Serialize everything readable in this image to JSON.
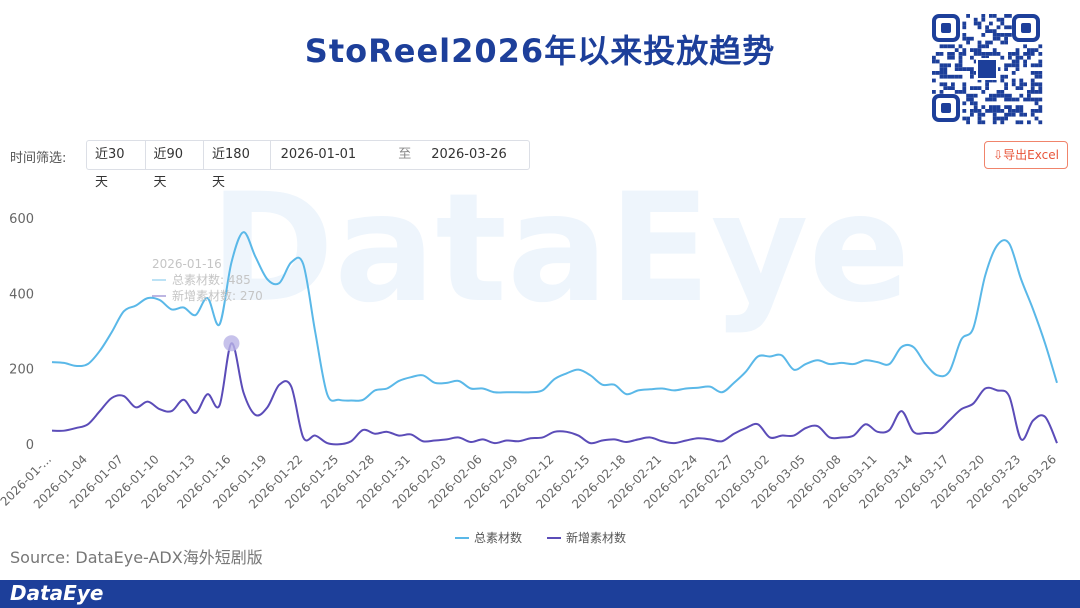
{
  "header": {
    "title": "StoReel2026年以来投放趋势"
  },
  "filter": {
    "label": "时间筛选:",
    "presets": [
      "近30天",
      "近90天",
      "近180天"
    ],
    "start": "2026-01-01",
    "separator": "至",
    "end": "2026-03-26",
    "export": "导出Excel"
  },
  "watermark": "DataEye",
  "source": "Source:  DataEye-ADX海外短剧版",
  "footer": {
    "brand": "DataEye"
  },
  "chart_data": {
    "type": "line",
    "categories": [
      "2026-01-...",
      null,
      null,
      "2026-01-04",
      null,
      null,
      "2026-01-07",
      null,
      null,
      "2026-01-10",
      null,
      null,
      "2026-01-13",
      null,
      null,
      "2026-01-16",
      null,
      null,
      "2026-01-19",
      null,
      null,
      "2026-01-22",
      null,
      null,
      "2026-01-25",
      null,
      null,
      "2026-01-28",
      null,
      null,
      "2026-01-31",
      null,
      null,
      "2026-02-03",
      null,
      null,
      "2026-02-06",
      null,
      null,
      "2026-02-09",
      null,
      null,
      "2026-02-12",
      null,
      null,
      "2026-02-15",
      null,
      null,
      "2026-02-18",
      null,
      null,
      "2026-02-21",
      null,
      null,
      "2026-02-24",
      null,
      null,
      "2026-02-27",
      null,
      null,
      "2026-03-02",
      null,
      null,
      "2026-03-05",
      null,
      null,
      "2026-03-08",
      null,
      null,
      "2026-03-11",
      null,
      null,
      "2026-03-14",
      null,
      null,
      "2026-03-17",
      null,
      null,
      "2026-03-20",
      null,
      null,
      "2026-03-23",
      null,
      null,
      "2026-03-26"
    ],
    "series": [
      {
        "name": "总素材数",
        "color": "#5ab8e8",
        "values": [
          220,
          218,
          210,
          215,
          250,
          300,
          355,
          370,
          390,
          385,
          360,
          365,
          345,
          390,
          320,
          485,
          565,
          500,
          440,
          430,
          485,
          480,
          300,
          135,
          120,
          118,
          120,
          145,
          150,
          170,
          180,
          185,
          165,
          165,
          170,
          150,
          150,
          140,
          140,
          140,
          140,
          145,
          175,
          190,
          200,
          185,
          160,
          160,
          135,
          145,
          148,
          150,
          145,
          150,
          152,
          155,
          140,
          165,
          195,
          235,
          235,
          238,
          200,
          215,
          225,
          215,
          218,
          215,
          225,
          220,
          215,
          260,
          260,
          215,
          185,
          195,
          280,
          310,
          450,
          530,
          535,
          440,
          360,
          270,
          165
        ]
      },
      {
        "name": "新增素材数",
        "color": "#5b4cb8",
        "values": [
          38,
          38,
          45,
          55,
          90,
          125,
          130,
          100,
          115,
          95,
          90,
          120,
          85,
          135,
          105,
          270,
          140,
          80,
          100,
          160,
          155,
          20,
          25,
          5,
          2,
          10,
          40,
          30,
          35,
          25,
          28,
          10,
          12,
          15,
          20,
          8,
          15,
          5,
          12,
          10,
          18,
          20,
          35,
          35,
          25,
          5,
          12,
          15,
          8,
          15,
          20,
          10,
          5,
          12,
          18,
          15,
          10,
          30,
          45,
          55,
          20,
          25,
          25,
          45,
          50,
          20,
          20,
          25,
          55,
          35,
          40,
          90,
          35,
          32,
          35,
          65,
          95,
          110,
          150,
          145,
          130,
          15,
          65,
          75,
          5
        ]
      }
    ],
    "ylim": [
      0,
      600
    ],
    "yticks": [
      0,
      200,
      400,
      600
    ],
    "grid": false,
    "legend": "bottom",
    "tooltip": {
      "date": "2026-01-16",
      "lines": [
        "总素材数: 485",
        "新增素材数: 270"
      ]
    }
  }
}
